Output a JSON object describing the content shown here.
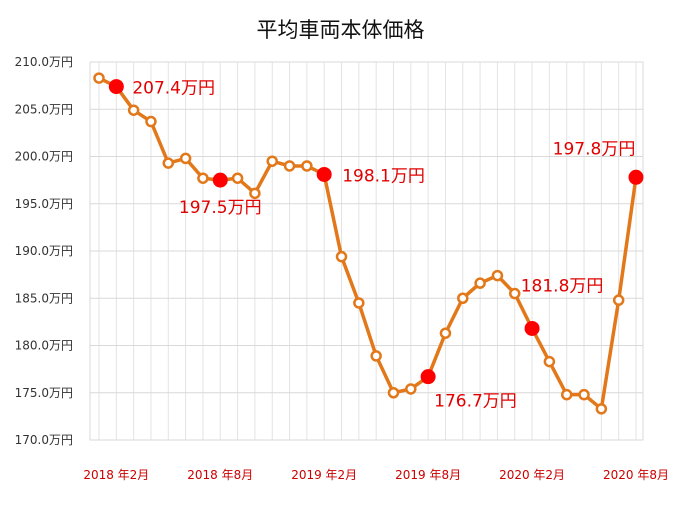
{
  "chart_data": {
    "type": "line",
    "title": "平均車両本体価格",
    "ylim": [
      170.0,
      210.0
    ],
    "y_ticks": [
      "210.0万円",
      "205.0万円",
      "200.0万円",
      "195.0万円",
      "190.0万円",
      "185.0万円",
      "180.0万円",
      "175.0万円",
      "170.0万円"
    ],
    "y_tick_values": [
      210,
      205,
      200,
      195,
      190,
      185,
      180,
      175,
      170
    ],
    "x_tick_labels": [
      {
        "label": "2018 年2月",
        "index": 1
      },
      {
        "label": "2018 年8月",
        "index": 7
      },
      {
        "label": "2019 年2月",
        "index": 13
      },
      {
        "label": "2019 年8月",
        "index": 19
      },
      {
        "label": "2020 年2月",
        "index": 25
      },
      {
        "label": "2020 年8月",
        "index": 31
      }
    ],
    "grid": true,
    "series": [
      {
        "values": [
          208.3,
          207.4,
          204.9,
          203.7,
          199.3,
          199.8,
          197.7,
          197.5,
          197.7,
          196.1,
          199.5,
          199.0,
          199.0,
          198.1,
          189.4,
          184.5,
          178.9,
          175.0,
          175.4,
          176.7,
          181.3,
          185.0,
          186.6,
          187.4,
          185.5,
          181.8,
          178.3,
          174.8,
          174.8,
          173.3,
          184.8,
          197.8
        ],
        "color": "#e2781a"
      }
    ],
    "highlights": [
      {
        "index": 1,
        "value": 207.4,
        "label": "207.4万円"
      },
      {
        "index": 7,
        "value": 197.5,
        "label": "197.5万円"
      },
      {
        "index": 13,
        "value": 198.1,
        "label": "198.1万円"
      },
      {
        "index": 19,
        "value": 176.7,
        "label": "176.7万円"
      },
      {
        "index": 25,
        "value": 181.8,
        "label": "181.8万円"
      },
      {
        "index": 31,
        "value": 197.8,
        "label": "197.8万円"
      }
    ],
    "highlight_color": "#ff0000"
  }
}
